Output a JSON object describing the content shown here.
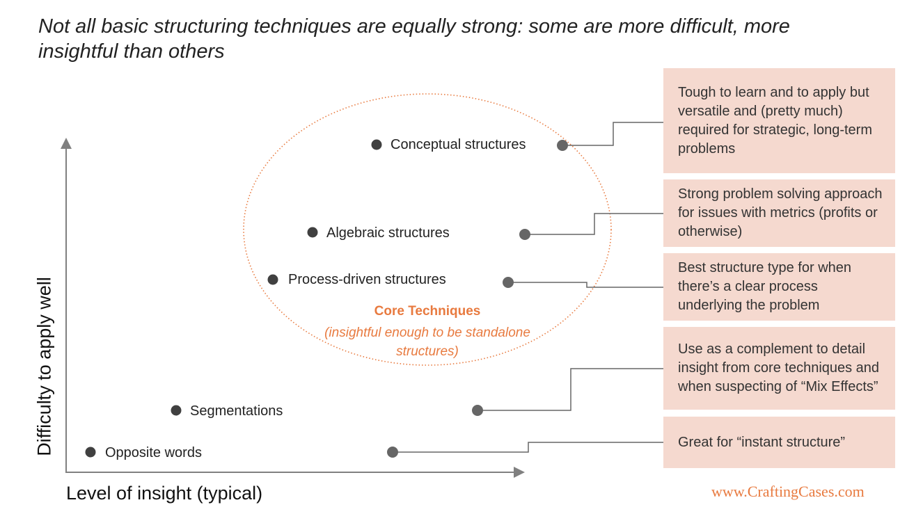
{
  "title": "Not all basic structuring techniques are equally strong: some are more difficult, more insightful than others",
  "axes": {
    "y_label": "Difficulty to apply well",
    "x_label": "Level of insight (typical)"
  },
  "core": {
    "title": "Core Techniques",
    "subtitle": "(insightful enough to be standalone structures)"
  },
  "techniques": [
    {
      "label": "Conceptual structures",
      "description": "Tough to learn and to apply but versatile and (pretty much) required for strategic, long-term problems"
    },
    {
      "label": "Algebraic structures",
      "description": "Strong problem solving approach for issues with metrics (profits or otherwise)"
    },
    {
      "label": "Process-driven structures",
      "description": "Best structure type for when there’s a clear process underlying the problem"
    },
    {
      "label": "Segmentations",
      "description": "Use as a complement to detail insight from core techniques and when suspecting of “Mix Effects”"
    },
    {
      "label": "Opposite words",
      "description": "Great for “instant structure”"
    }
  ],
  "watermark": "www.CraftingCases.com",
  "colors": {
    "accent": "#e87a3f",
    "box_fill": "#f5d9cf",
    "dot": "#404040",
    "connector": "#666666",
    "axis": "#808080"
  }
}
